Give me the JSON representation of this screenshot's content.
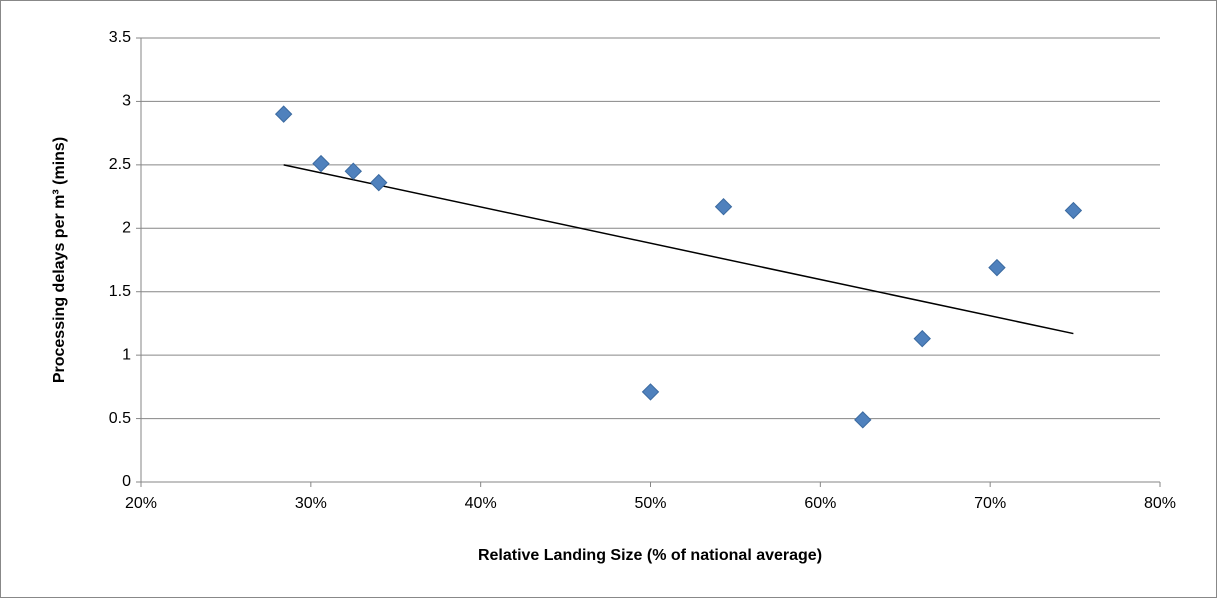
{
  "chart_data": {
    "type": "scatter",
    "x_label": "Relative Landing Size (% of national average)",
    "y_label": "Processing delays per m³ (mins)",
    "series": [
      {
        "name": "Processing delays",
        "color": "#4f81bd",
        "x": [
          28.4,
          30.6,
          32.5,
          34.0,
          50.0,
          54.3,
          62.5,
          66.0,
          70.4,
          74.9
        ],
        "values": [
          2.9,
          2.51,
          2.45,
          2.36,
          0.71,
          2.17,
          0.49,
          1.13,
          1.69,
          2.14
        ]
      }
    ],
    "trendline": {
      "color": "#000000",
      "x": [
        28.4,
        74.9
      ],
      "values": [
        2.5,
        1.17
      ]
    },
    "xlim": [
      20,
      80
    ],
    "xticks": [
      {
        "value": 20,
        "label": "20%"
      },
      {
        "value": 30,
        "label": "30%"
      },
      {
        "value": 40,
        "label": "40%"
      },
      {
        "value": 50,
        "label": "50%"
      },
      {
        "value": 60,
        "label": "60%"
      },
      {
        "value": 70,
        "label": "70%"
      },
      {
        "value": 80,
        "label": "80%"
      }
    ],
    "ylim": [
      0,
      3.5
    ],
    "yticks": [
      0,
      0.5,
      1,
      1.5,
      2,
      2.5,
      3,
      3.5
    ],
    "grid": true
  }
}
